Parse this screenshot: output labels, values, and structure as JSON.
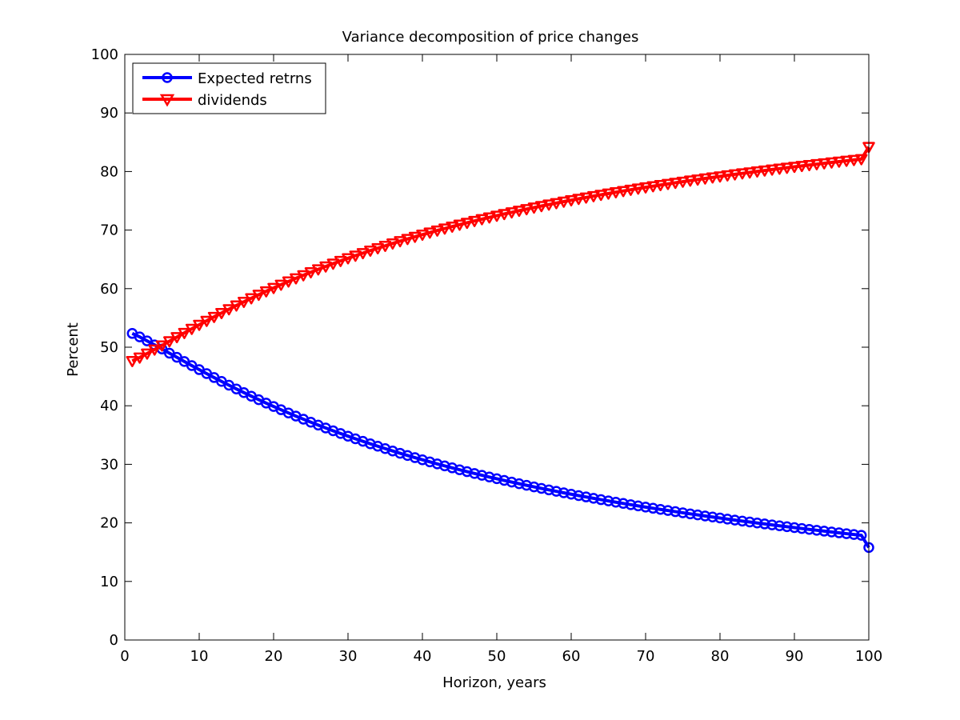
{
  "chart_data": {
    "type": "line",
    "title": "Variance decomposition of price changes",
    "xlabel": "Horizon, years",
    "ylabel": "Percent",
    "xlim": [
      0,
      100
    ],
    "ylim": [
      0,
      100
    ],
    "xticks": [
      0,
      10,
      20,
      30,
      40,
      50,
      60,
      70,
      80,
      90,
      100
    ],
    "yticks": [
      0,
      10,
      20,
      30,
      40,
      50,
      60,
      70,
      80,
      90,
      100
    ],
    "grid": false,
    "legend_position": "top-left",
    "x": [
      1,
      2,
      3,
      4,
      5,
      6,
      7,
      8,
      9,
      10,
      11,
      12,
      13,
      14,
      15,
      16,
      17,
      18,
      19,
      20,
      21,
      22,
      23,
      24,
      25,
      26,
      27,
      28,
      29,
      30,
      31,
      32,
      33,
      34,
      35,
      36,
      37,
      38,
      39,
      40,
      41,
      42,
      43,
      44,
      45,
      46,
      47,
      48,
      49,
      50,
      51,
      52,
      53,
      54,
      55,
      56,
      57,
      58,
      59,
      60,
      61,
      62,
      63,
      64,
      65,
      66,
      67,
      68,
      69,
      70,
      71,
      72,
      73,
      74,
      75,
      76,
      77,
      78,
      79,
      80,
      81,
      82,
      83,
      84,
      85,
      86,
      87,
      88,
      89,
      90,
      91,
      92,
      93,
      94,
      95,
      96,
      97,
      98,
      99,
      100
    ],
    "series": [
      {
        "name": "Expected retrns",
        "color": "#0000ff",
        "marker": "circle",
        "values": [
          52.35,
          51.76,
          51.08,
          50.39,
          49.69,
          48.98,
          48.27,
          47.56,
          46.86,
          46.17,
          45.49,
          44.82,
          44.16,
          43.51,
          42.87,
          42.25,
          41.64,
          41.04,
          40.45,
          39.88,
          39.32,
          38.77,
          38.23,
          37.71,
          37.2,
          36.7,
          36.21,
          35.73,
          35.26,
          34.81,
          34.36,
          33.93,
          33.5,
          33.09,
          32.68,
          32.28,
          31.89,
          31.51,
          31.14,
          30.78,
          30.42,
          30.07,
          29.73,
          29.4,
          29.07,
          28.75,
          28.44,
          28.13,
          27.83,
          27.54,
          27.25,
          26.97,
          26.69,
          26.42,
          26.15,
          25.89,
          25.64,
          25.39,
          25.14,
          24.9,
          24.66,
          24.43,
          24.2,
          23.97,
          23.75,
          23.53,
          23.32,
          23.11,
          22.9,
          22.7,
          22.5,
          22.3,
          22.11,
          21.92,
          21.73,
          21.54,
          21.36,
          21.18,
          21.0,
          20.83,
          20.65,
          20.48,
          20.31,
          20.15,
          19.98,
          19.82,
          19.66,
          19.5,
          19.35,
          19.19,
          19.04,
          18.89,
          18.74,
          18.59,
          18.45,
          18.3,
          18.16,
          18.02,
          17.88,
          15.8
        ]
      },
      {
        "name": "dividends",
        "color": "#ff0000",
        "marker": "triangle-down",
        "values": [
          47.65,
          48.24,
          48.92,
          49.61,
          50.31,
          51.02,
          51.73,
          52.44,
          53.14,
          53.83,
          54.51,
          55.18,
          55.84,
          56.49,
          57.13,
          57.75,
          58.36,
          58.96,
          59.55,
          60.12,
          60.68,
          61.23,
          61.77,
          62.29,
          62.8,
          63.3,
          63.79,
          64.27,
          64.74,
          65.19,
          65.64,
          66.07,
          66.5,
          66.91,
          67.32,
          67.72,
          68.11,
          68.49,
          68.86,
          69.22,
          69.58,
          69.93,
          70.27,
          70.6,
          70.93,
          71.25,
          71.56,
          71.87,
          72.17,
          72.46,
          72.75,
          73.03,
          73.31,
          73.58,
          73.85,
          74.11,
          74.36,
          74.61,
          74.86,
          75.1,
          75.34,
          75.57,
          75.8,
          76.03,
          76.25,
          76.47,
          76.68,
          76.89,
          77.1,
          77.3,
          77.5,
          77.7,
          77.89,
          78.08,
          78.27,
          78.46,
          78.64,
          78.82,
          79.0,
          79.17,
          79.35,
          79.52,
          79.69,
          79.85,
          80.02,
          80.18,
          80.34,
          80.5,
          80.65,
          80.81,
          80.96,
          81.11,
          81.26,
          81.41,
          81.55,
          81.7,
          81.84,
          81.98,
          82.12,
          84.2
        ]
      }
    ]
  }
}
